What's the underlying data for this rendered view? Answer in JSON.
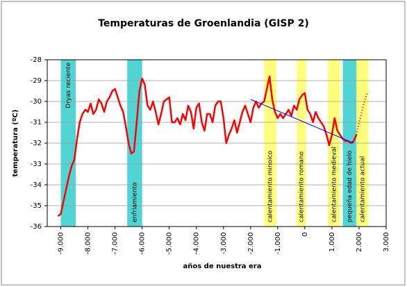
{
  "chart_data": {
    "type": "line",
    "title": "Temperaturas de Groenlandia (GISP 2)",
    "xlabel": "años de nuestra era",
    "ylabel": "temperatura (ºC)",
    "xlim": [
      -9500,
      3000
    ],
    "ylim": [
      -36,
      -28
    ],
    "xticks": [
      {
        "value": -9000,
        "label": "-9.000"
      },
      {
        "value": -8000,
        "label": "-8.000"
      },
      {
        "value": -7000,
        "label": "-7.000"
      },
      {
        "value": -6000,
        "label": "-6.000"
      },
      {
        "value": -5000,
        "label": "-5.000"
      },
      {
        "value": -4000,
        "label": "-4.000"
      },
      {
        "value": -3000,
        "label": "-3.000"
      },
      {
        "value": -2000,
        "label": "-2.000"
      },
      {
        "value": -1000,
        "label": "-1.000"
      },
      0,
      {
        "value": 1000,
        "label": "1.000"
      },
      {
        "value": 2000,
        "label": "2.000"
      },
      {
        "value": 3000,
        "label": "3.000"
      }
    ],
    "yticks": [
      -36,
      -35,
      -34,
      -33,
      -32,
      -31,
      -30,
      -29,
      -28
    ],
    "grid": true,
    "bands": [
      {
        "label": "Dryas reciente",
        "from": -9000,
        "to": -8450,
        "color": "#33cccc"
      },
      {
        "label": "enfriamiento",
        "from": -6550,
        "to": -6000,
        "color": "#33cccc"
      },
      {
        "label": "calentamiento minoico",
        "from": -1500,
        "to": -1050,
        "color": "#ffff66"
      },
      {
        "label": "calentamiento romano",
        "from": -300,
        "to": 50,
        "color": "#ffff66"
      },
      {
        "label": "calentamiento medieval",
        "from": 850,
        "to": 1300,
        "color": "#ffff66"
      },
      {
        "label": "pequeña edad de hielo",
        "from": 1400,
        "to": 1900,
        "color": "#33cccc"
      },
      {
        "label": "calentamiento actual",
        "from": 1900,
        "to": 2350,
        "color": "#ffff66"
      }
    ],
    "series": [
      {
        "color": "#ff0000",
        "style": "solid",
        "x": [
          -9100,
          -9000,
          -8900,
          -8800,
          -8700,
          -8600,
          -8500,
          -8400,
          -8300,
          -8200,
          -8100,
          -8000,
          -7900,
          -7800,
          -7700,
          -7600,
          -7500,
          -7400,
          -7300,
          -7200,
          -7100,
          -7000,
          -6900,
          -6800,
          -6700,
          -6600,
          -6500,
          -6400,
          -6300,
          -6200,
          -6100,
          -6000,
          -5900,
          -5800,
          -5700,
          -5600,
          -5500,
          -5400,
          -5300,
          -5200,
          -5100,
          -5000,
          -4900,
          -4800,
          -4700,
          -4600,
          -4500,
          -4400,
          -4300,
          -4200,
          -4100,
          -4000,
          -3900,
          -3800,
          -3700,
          -3600,
          -3500,
          -3400,
          -3300,
          -3200,
          -3100,
          -3000,
          -2900,
          -2800,
          -2700,
          -2600,
          -2500,
          -2400,
          -2300,
          -2200,
          -2100,
          -2000,
          -1900,
          -1800,
          -1700,
          -1600,
          -1500,
          -1400,
          -1300,
          -1200,
          -1100,
          -1000,
          -900,
          -800,
          -700,
          -600,
          -500,
          -400,
          -300,
          -200,
          -100,
          0,
          100,
          200,
          300,
          400,
          500,
          600,
          700,
          800,
          900,
          1000,
          1100,
          1200,
          1300,
          1400,
          1500,
          1600,
          1700,
          1800,
          1900
        ],
        "values": [
          -35.5,
          -35.4,
          -34.8,
          -34.2,
          -33.6,
          -33.1,
          -32.8,
          -31.8,
          -31.0,
          -30.6,
          -30.4,
          -30.5,
          -30.1,
          -30.6,
          -30.4,
          -29.9,
          -30.1,
          -30.5,
          -30.0,
          -29.8,
          -29.5,
          -29.4,
          -29.8,
          -30.2,
          -30.5,
          -31.2,
          -32.0,
          -32.5,
          -32.4,
          -31.0,
          -29.5,
          -28.9,
          -29.2,
          -30.2,
          -30.4,
          -30.0,
          -30.5,
          -31.1,
          -30.6,
          -30.0,
          -29.9,
          -29.8,
          -31.0,
          -31.0,
          -30.8,
          -31.1,
          -30.6,
          -30.9,
          -30.2,
          -30.5,
          -31.3,
          -30.3,
          -30.1,
          -31.0,
          -31.4,
          -30.6,
          -30.6,
          -31.0,
          -30.2,
          -30.0,
          -30.0,
          -30.8,
          -32.0,
          -31.6,
          -31.3,
          -30.9,
          -31.5,
          -31.0,
          -30.5,
          -30.2,
          -30.6,
          -31.0,
          -30.3,
          -30.0,
          -30.3,
          -30.1,
          -30.0,
          -29.4,
          -28.8,
          -29.9,
          -30.5,
          -30.8,
          -30.6,
          -30.8,
          -30.6,
          -30.4,
          -30.7,
          -30.2,
          -30.4,
          -29.9,
          -29.7,
          -29.6,
          -30.4,
          -30.6,
          -31.0,
          -30.5,
          -30.8,
          -31.0,
          -31.2,
          -31.6,
          -32.1,
          -31.6,
          -30.8,
          -31.4,
          -31.6,
          -31.8,
          -31.9,
          -31.9,
          -32.0,
          -31.9,
          -31.6
        ]
      },
      {
        "color": "#ff0000",
        "style": "dotted",
        "x": [
          1900,
          2000,
          2100,
          2200,
          2300
        ],
        "values": [
          -31.6,
          -31.0,
          -30.5,
          -30.0,
          -29.6
        ]
      },
      {
        "color": "#0000ff",
        "style": "thin",
        "x": [
          -2000,
          1800
        ],
        "values": [
          -29.9,
          -32.0
        ]
      }
    ]
  }
}
